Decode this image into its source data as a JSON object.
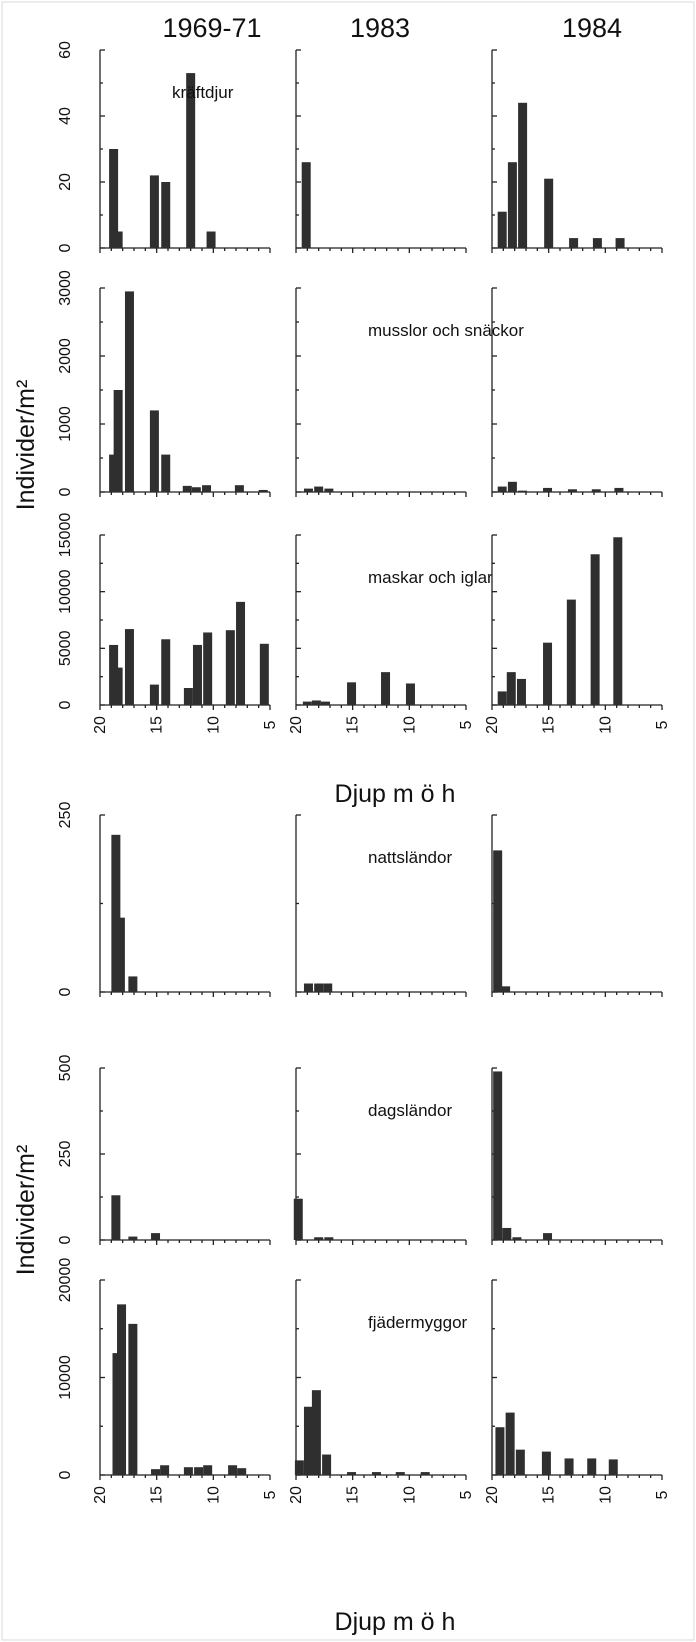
{
  "figure": {
    "columns": [
      "1969-71",
      "1983",
      "1984"
    ],
    "ylabel": "Individer/m²",
    "xlabel": "Djup m ö h"
  },
  "chart_data": [
    {
      "type": "bar",
      "group": "A",
      "row": 0,
      "col": 0,
      "title": "kräftdjur",
      "ylim": [
        0,
        60
      ],
      "yticks": [
        0,
        20,
        40,
        60
      ],
      "xlim": [
        20,
        5
      ],
      "xticks": [
        20,
        15,
        10,
        5
      ],
      "bars": [
        {
          "x": 18.8,
          "y": 30
        },
        {
          "x": 18.4,
          "y": 5
        },
        {
          "x": 15.2,
          "y": 22
        },
        {
          "x": 14.2,
          "y": 20
        },
        {
          "x": 12.0,
          "y": 53
        },
        {
          "x": 10.2,
          "y": 5
        }
      ]
    },
    {
      "type": "bar",
      "group": "A",
      "row": 0,
      "col": 1,
      "title": "",
      "ylim": [
        0,
        60
      ],
      "yticks": [
        0,
        20,
        40,
        60
      ],
      "xlim": [
        20,
        5
      ],
      "xticks": [
        20,
        15,
        10,
        5
      ],
      "bars": [
        {
          "x": 19.1,
          "y": 26
        }
      ]
    },
    {
      "type": "bar",
      "group": "A",
      "row": 0,
      "col": 2,
      "title": "",
      "ylim": [
        0,
        60
      ],
      "yticks": [
        0,
        20,
        40,
        60
      ],
      "xlim": [
        20,
        5
      ],
      "xticks": [
        20,
        15,
        10,
        5
      ],
      "bars": [
        {
          "x": 19.1,
          "y": 11
        },
        {
          "x": 18.2,
          "y": 26
        },
        {
          "x": 17.3,
          "y": 44
        },
        {
          "x": 15.0,
          "y": 21
        },
        {
          "x": 12.8,
          "y": 3
        },
        {
          "x": 10.7,
          "y": 3
        },
        {
          "x": 8.7,
          "y": 3
        }
      ]
    },
    {
      "type": "bar",
      "group": "A",
      "row": 1,
      "col": 0,
      "title": "",
      "ylim": [
        0,
        3000
      ],
      "yticks": [
        0,
        1000,
        2000,
        3000
      ],
      "xlim": [
        20,
        5
      ],
      "xticks": [
        20,
        15,
        10,
        5
      ],
      "bars": [
        {
          "x": 18.8,
          "y": 550
        },
        {
          "x": 18.4,
          "y": 1500
        },
        {
          "x": 17.4,
          "y": 2950
        },
        {
          "x": 15.2,
          "y": 1200
        },
        {
          "x": 14.2,
          "y": 550
        },
        {
          "x": 12.3,
          "y": 90
        },
        {
          "x": 11.5,
          "y": 70
        },
        {
          "x": 10.6,
          "y": 100
        },
        {
          "x": 7.7,
          "y": 100
        },
        {
          "x": 5.6,
          "y": 30
        }
      ]
    },
    {
      "type": "bar",
      "group": "A",
      "row": 1,
      "col": 1,
      "title": "musslor och snäckor",
      "ylim": [
        0,
        3000
      ],
      "yticks": [
        0,
        1000,
        2000,
        3000
      ],
      "xlim": [
        20,
        5
      ],
      "xticks": [
        20,
        15,
        10,
        5
      ],
      "bars": [
        {
          "x": 18.9,
          "y": 50
        },
        {
          "x": 18.0,
          "y": 80
        },
        {
          "x": 17.1,
          "y": 50
        }
      ]
    },
    {
      "type": "bar",
      "group": "A",
      "row": 1,
      "col": 2,
      "title": "",
      "ylim": [
        0,
        3000
      ],
      "yticks": [
        0,
        1000,
        2000,
        3000
      ],
      "xlim": [
        20,
        5
      ],
      "xticks": [
        20,
        15,
        10,
        5
      ],
      "bars": [
        {
          "x": 19.1,
          "y": 80
        },
        {
          "x": 18.2,
          "y": 150
        },
        {
          "x": 17.3,
          "y": 20
        },
        {
          "x": 15.1,
          "y": 60
        },
        {
          "x": 12.9,
          "y": 40
        },
        {
          "x": 10.8,
          "y": 40
        },
        {
          "x": 8.8,
          "y": 60
        }
      ]
    },
    {
      "type": "bar",
      "group": "A",
      "row": 2,
      "col": 0,
      "title": "",
      "ylim": [
        0,
        15000
      ],
      "yticks": [
        0,
        5000,
        10000,
        15000
      ],
      "xlim": [
        20,
        5
      ],
      "xticks": [
        20,
        15,
        10,
        5
      ],
      "bars": [
        {
          "x": 18.8,
          "y": 5300
        },
        {
          "x": 18.4,
          "y": 3300
        },
        {
          "x": 17.4,
          "y": 6700
        },
        {
          "x": 15.2,
          "y": 1800
        },
        {
          "x": 14.2,
          "y": 5800
        },
        {
          "x": 12.2,
          "y": 1500
        },
        {
          "x": 11.4,
          "y": 5300
        },
        {
          "x": 10.5,
          "y": 6400
        },
        {
          "x": 8.5,
          "y": 6600
        },
        {
          "x": 7.6,
          "y": 9100
        },
        {
          "x": 5.5,
          "y": 5400
        }
      ]
    },
    {
      "type": "bar",
      "group": "A",
      "row": 2,
      "col": 1,
      "title": "maskar och iglar",
      "ylim": [
        0,
        15000
      ],
      "yticks": [
        0,
        5000,
        10000,
        15000
      ],
      "xlim": [
        20,
        5
      ],
      "xticks": [
        20,
        15,
        10,
        5
      ],
      "bars": [
        {
          "x": 19.0,
          "y": 300
        },
        {
          "x": 18.2,
          "y": 400
        },
        {
          "x": 17.4,
          "y": 300
        },
        {
          "x": 15.1,
          "y": 2000
        },
        {
          "x": 12.1,
          "y": 2900
        },
        {
          "x": 9.9,
          "y": 1900
        }
      ]
    },
    {
      "type": "bar",
      "group": "A",
      "row": 2,
      "col": 2,
      "title": "",
      "ylim": [
        0,
        15000
      ],
      "yticks": [
        0,
        5000,
        10000,
        15000
      ],
      "xlim": [
        20,
        5
      ],
      "xticks": [
        20,
        15,
        10,
        5
      ],
      "bars": [
        {
          "x": 19.1,
          "y": 1200
        },
        {
          "x": 18.3,
          "y": 2900
        },
        {
          "x": 17.4,
          "y": 2300
        },
        {
          "x": 15.1,
          "y": 5500
        },
        {
          "x": 13.0,
          "y": 9300
        },
        {
          "x": 10.9,
          "y": 13300
        },
        {
          "x": 8.9,
          "y": 14800
        }
      ]
    },
    {
      "type": "bar",
      "group": "B",
      "row": 3,
      "col": 0,
      "title": "",
      "ylim": [
        0,
        250
      ],
      "yticks": [
        0,
        250
      ],
      "xlim": [
        20,
        5
      ],
      "xticks": [
        20,
        15,
        10,
        5
      ],
      "bars": [
        {
          "x": 18.6,
          "y": 222
        },
        {
          "x": 18.2,
          "y": 105
        },
        {
          "x": 17.1,
          "y": 22
        }
      ]
    },
    {
      "type": "bar",
      "group": "B",
      "row": 3,
      "col": 1,
      "title": "nattsländor",
      "ylim": [
        0,
        250
      ],
      "yticks": [
        0,
        250
      ],
      "xlim": [
        20,
        5
      ],
      "xticks": [
        20,
        15,
        10,
        5
      ],
      "bars": [
        {
          "x": 18.9,
          "y": 12
        },
        {
          "x": 18.0,
          "y": 12
        },
        {
          "x": 17.2,
          "y": 12
        }
      ]
    },
    {
      "type": "bar",
      "group": "B",
      "row": 3,
      "col": 2,
      "title": "",
      "ylim": [
        0,
        250
      ],
      "yticks": [
        0,
        250
      ],
      "xlim": [
        20,
        5
      ],
      "xticks": [
        20,
        15,
        10,
        5
      ],
      "bars": [
        {
          "x": 19.5,
          "y": 200
        },
        {
          "x": 18.8,
          "y": 8
        }
      ]
    },
    {
      "type": "bar",
      "group": "B",
      "row": 4,
      "col": 0,
      "title": "",
      "ylim": [
        0,
        500
      ],
      "yticks": [
        0,
        250,
        500
      ],
      "xlim": [
        20,
        5
      ],
      "xticks": [
        20,
        15,
        10,
        5
      ],
      "bars": [
        {
          "x": 18.6,
          "y": 130
        },
        {
          "x": 17.1,
          "y": 10
        },
        {
          "x": 15.1,
          "y": 20
        }
      ]
    },
    {
      "type": "bar",
      "group": "B",
      "row": 4,
      "col": 1,
      "title": "dagsländor",
      "ylim": [
        0,
        500
      ],
      "yticks": [
        0,
        250,
        500
      ],
      "xlim": [
        20,
        5
      ],
      "xticks": [
        20,
        15,
        10,
        5
      ],
      "bars": [
        {
          "x": 19.8,
          "y": 120
        },
        {
          "x": 18.0,
          "y": 8
        },
        {
          "x": 17.1,
          "y": 8
        }
      ]
    },
    {
      "type": "bar",
      "group": "B",
      "row": 4,
      "col": 2,
      "title": "",
      "ylim": [
        0,
        500
      ],
      "yticks": [
        0,
        250,
        500
      ],
      "xlim": [
        20,
        5
      ],
      "xticks": [
        20,
        15,
        10,
        5
      ],
      "bars": [
        {
          "x": 19.5,
          "y": 490
        },
        {
          "x": 18.7,
          "y": 35
        },
        {
          "x": 17.8,
          "y": 8
        },
        {
          "x": 15.1,
          "y": 20
        }
      ]
    },
    {
      "type": "bar",
      "group": "B",
      "row": 5,
      "col": 0,
      "title": "",
      "ylim": [
        0,
        20000
      ],
      "yticks": [
        0,
        10000,
        20000
      ],
      "xlim": [
        20,
        5
      ],
      "xticks": [
        20,
        15,
        10,
        5
      ],
      "bars": [
        {
          "x": 18.5,
          "y": 12500
        },
        {
          "x": 18.1,
          "y": 17500
        },
        {
          "x": 17.1,
          "y": 15500
        },
        {
          "x": 15.1,
          "y": 600
        },
        {
          "x": 14.3,
          "y": 1000
        },
        {
          "x": 12.2,
          "y": 800
        },
        {
          "x": 11.3,
          "y": 800
        },
        {
          "x": 10.5,
          "y": 1000
        },
        {
          "x": 8.3,
          "y": 1000
        },
        {
          "x": 7.5,
          "y": 700
        }
      ]
    },
    {
      "type": "bar",
      "group": "B",
      "row": 5,
      "col": 1,
      "title": "fjädermyggor",
      "ylim": [
        0,
        20000
      ],
      "yticks": [
        0,
        10000,
        20000
      ],
      "xlim": [
        20,
        5
      ],
      "xticks": [
        20,
        15,
        10,
        5
      ],
      "bars": [
        {
          "x": 19.7,
          "y": 1500
        },
        {
          "x": 18.9,
          "y": 7000
        },
        {
          "x": 18.2,
          "y": 8700
        },
        {
          "x": 17.3,
          "y": 2100
        },
        {
          "x": 15.1,
          "y": 300
        },
        {
          "x": 12.9,
          "y": 300
        },
        {
          "x": 10.8,
          "y": 300
        },
        {
          "x": 8.6,
          "y": 300
        }
      ]
    },
    {
      "type": "bar",
      "group": "B",
      "row": 5,
      "col": 2,
      "title": "",
      "ylim": [
        0,
        20000
      ],
      "yticks": [
        0,
        10000,
        20000
      ],
      "xlim": [
        20,
        5
      ],
      "xticks": [
        20,
        15,
        10,
        5
      ],
      "bars": [
        {
          "x": 19.3,
          "y": 4900
        },
        {
          "x": 18.4,
          "y": 6400
        },
        {
          "x": 17.5,
          "y": 2600
        },
        {
          "x": 15.2,
          "y": 2400
        },
        {
          "x": 13.2,
          "y": 1700
        },
        {
          "x": 11.2,
          "y": 1700
        },
        {
          "x": 9.3,
          "y": 1600
        }
      ]
    }
  ]
}
